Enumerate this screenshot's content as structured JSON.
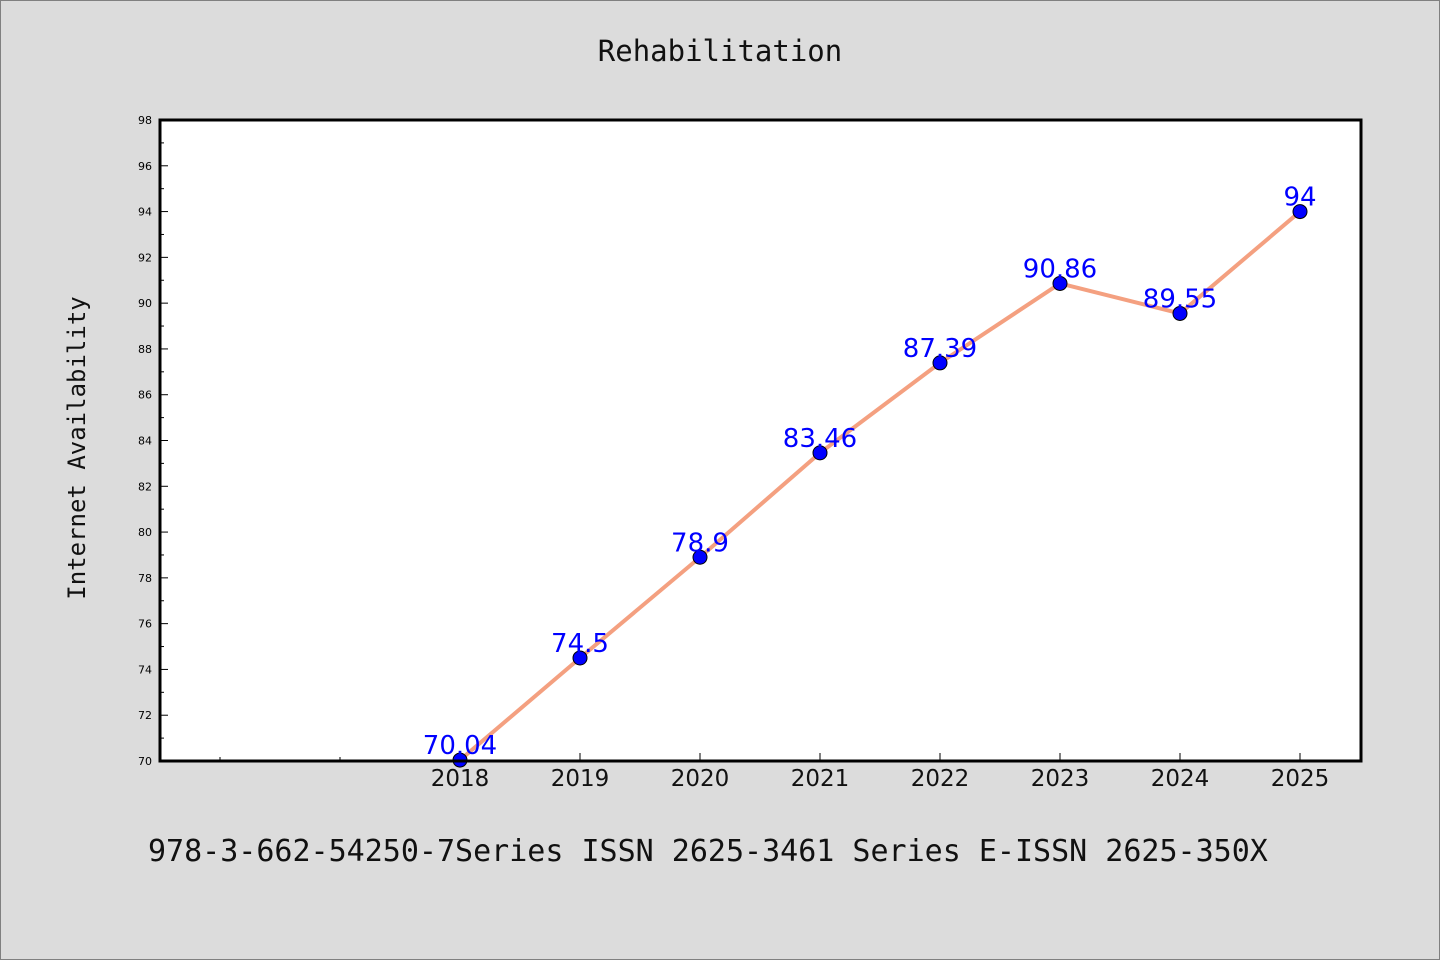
{
  "title": "Rehabilitation",
  "footer": "978-3-662-54250-7Series ISSN 2625-3461 Series E-ISSN 2625-350X",
  "chart_data": {
    "type": "line",
    "title": "Rehabilitation",
    "xlabel": "",
    "ylabel": "Internet Availability",
    "categories": [
      "2018",
      "2019",
      "2020",
      "2021",
      "2022",
      "2023",
      "2024",
      "2025"
    ],
    "series": [
      {
        "values": [
          70.04,
          74.5,
          78.9,
          83.46,
          87.39,
          90.86,
          89.55,
          94
        ],
        "data_labels": [
          "70.04",
          "74.5",
          "78.9",
          "83.46",
          "87.39",
          "90.86",
          "89.55",
          "94"
        ],
        "line_color": "#f4a080",
        "marker_color": "#0000ff"
      }
    ],
    "ylim": [
      70,
      98
    ],
    "yticks": [
      "70",
      "72",
      "74",
      "76",
      "78",
      "80",
      "82",
      "84",
      "86",
      "88",
      "90",
      "92",
      "94",
      "96",
      "98"
    ],
    "grid": false,
    "legend": "none"
  }
}
